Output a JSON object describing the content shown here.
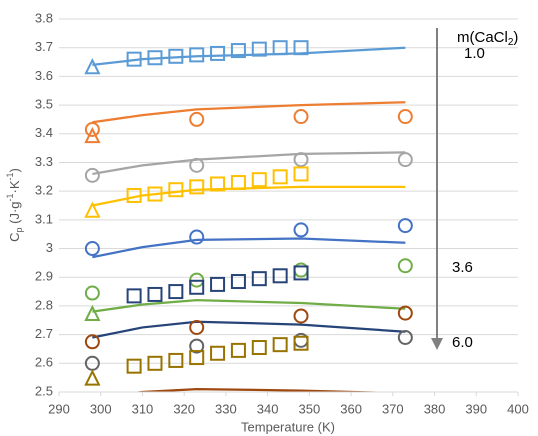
{
  "chart_data": {
    "type": "scatter",
    "xlabel": "Temperature (K)",
    "ylabel_parts": [
      "C",
      "p",
      " (J·g",
      "-1",
      "·K",
      "-1",
      ")"
    ],
    "xlim": [
      290,
      400
    ],
    "xticks": [
      290,
      300,
      310,
      320,
      330,
      340,
      350,
      360,
      370,
      380,
      390,
      400
    ],
    "ylim": [
      2.5,
      3.8
    ],
    "yticks": [
      2.5,
      2.6,
      2.7,
      2.8,
      2.9,
      3,
      3.1,
      3.2,
      3.3,
      3.4,
      3.5,
      3.6,
      3.7,
      3.8
    ],
    "grid": true,
    "annotations": {
      "title_parts": [
        "m(CaCl",
        "2",
        ")"
      ],
      "top": "1.0",
      "middle": "3.6",
      "bottom": "6.0"
    },
    "series": [
      {
        "color": "#5b9bd5",
        "marker": "line",
        "x": [
          298,
          310,
          323,
          348,
          373
        ],
        "values": [
          3.64,
          3.66,
          3.67,
          3.68,
          3.7
        ]
      },
      {
        "color": "#5b9bd5",
        "marker": "triangle",
        "x": [
          298
        ],
        "values": [
          3.63
        ]
      },
      {
        "color": "#5b9bd5",
        "marker": "square",
        "x": [
          308,
          313,
          318,
          323,
          328,
          333,
          338,
          343,
          348
        ],
        "values": [
          3.66,
          3.665,
          3.67,
          3.675,
          3.68,
          3.69,
          3.695,
          3.7,
          3.7
        ]
      },
      {
        "color": "#ed7d31",
        "marker": "line",
        "x": [
          298,
          310,
          323,
          348,
          373
        ],
        "values": [
          3.44,
          3.465,
          3.485,
          3.5,
          3.51
        ]
      },
      {
        "color": "#ed7d31",
        "marker": "triangle",
        "x": [
          298
        ],
        "values": [
          3.39
        ]
      },
      {
        "color": "#ed7d31",
        "marker": "circle",
        "x": [
          298,
          323,
          348,
          373
        ],
        "values": [
          3.415,
          3.45,
          3.46,
          3.46
        ]
      },
      {
        "color": "#a5a5a5",
        "marker": "line",
        "x": [
          298,
          310,
          323,
          348,
          373
        ],
        "values": [
          3.26,
          3.29,
          3.31,
          3.33,
          3.335
        ]
      },
      {
        "color": "#a5a5a5",
        "marker": "circle",
        "x": [
          298,
          323,
          348,
          373
        ],
        "values": [
          3.255,
          3.29,
          3.31,
          3.31
        ]
      },
      {
        "color": "#ffc000",
        "marker": "line",
        "x": [
          298,
          310,
          323,
          348,
          373
        ],
        "values": [
          3.15,
          3.185,
          3.205,
          3.215,
          3.215
        ]
      },
      {
        "color": "#ffc000",
        "marker": "triangle",
        "x": [
          298
        ],
        "values": [
          3.13
        ]
      },
      {
        "color": "#ffc000",
        "marker": "square",
        "x": [
          308,
          313,
          318,
          323,
          328,
          333,
          338,
          343,
          348
        ],
        "values": [
          3.185,
          3.19,
          3.205,
          3.215,
          3.225,
          3.23,
          3.24,
          3.25,
          3.26
        ]
      },
      {
        "color": "#4472c4",
        "marker": "line",
        "x": [
          298,
          310,
          323,
          348,
          373
        ],
        "values": [
          2.97,
          3.005,
          3.03,
          3.035,
          3.02
        ]
      },
      {
        "color": "#4472c4",
        "marker": "circle",
        "x": [
          298,
          323,
          348,
          373
        ],
        "values": [
          3.0,
          3.04,
          3.065,
          3.08
        ]
      },
      {
        "color": "#70ad47",
        "marker": "line",
        "x": [
          298,
          310,
          323,
          348,
          373
        ],
        "values": [
          2.78,
          2.805,
          2.82,
          2.81,
          2.79
        ]
      },
      {
        "color": "#70ad47",
        "marker": "triangle",
        "x": [
          298
        ],
        "values": [
          2.77
        ]
      },
      {
        "color": "#70ad47",
        "marker": "circle",
        "x": [
          298,
          323,
          348,
          373
        ],
        "values": [
          2.845,
          2.89,
          2.925,
          2.94
        ]
      },
      {
        "color": "#264478",
        "marker": "line",
        "x": [
          298,
          310,
          323,
          348,
          373
        ],
        "values": [
          2.69,
          2.725,
          2.745,
          2.735,
          2.71
        ]
      },
      {
        "color": "#264478",
        "marker": "square",
        "x": [
          308,
          313,
          318,
          323,
          328,
          333,
          338,
          343,
          348
        ],
        "values": [
          2.835,
          2.84,
          2.85,
          2.865,
          2.875,
          2.885,
          2.895,
          2.905,
          2.915
        ]
      },
      {
        "color": "#9e480e",
        "marker": "line",
        "x": [
          298,
          310,
          323,
          348,
          373
        ],
        "values": [
          2.48,
          2.5,
          2.51,
          2.505,
          2.495
        ]
      },
      {
        "color": "#9e480e",
        "marker": "circle",
        "x": [
          298,
          323,
          348,
          373
        ],
        "values": [
          2.675,
          2.725,
          2.765,
          2.775
        ]
      },
      {
        "color": "#636363",
        "marker": "circle",
        "x": [
          298,
          323,
          348,
          373
        ],
        "values": [
          2.6,
          2.66,
          2.68,
          2.69
        ]
      },
      {
        "color": "#997300",
        "marker": "triangle",
        "x": [
          298
        ],
        "values": [
          2.545
        ]
      },
      {
        "color": "#997300",
        "marker": "square",
        "x": [
          308,
          313,
          318,
          323,
          328,
          333,
          338,
          343,
          348
        ],
        "values": [
          2.59,
          2.6,
          2.61,
          2.62,
          2.635,
          2.645,
          2.655,
          2.665,
          2.67
        ]
      }
    ]
  }
}
